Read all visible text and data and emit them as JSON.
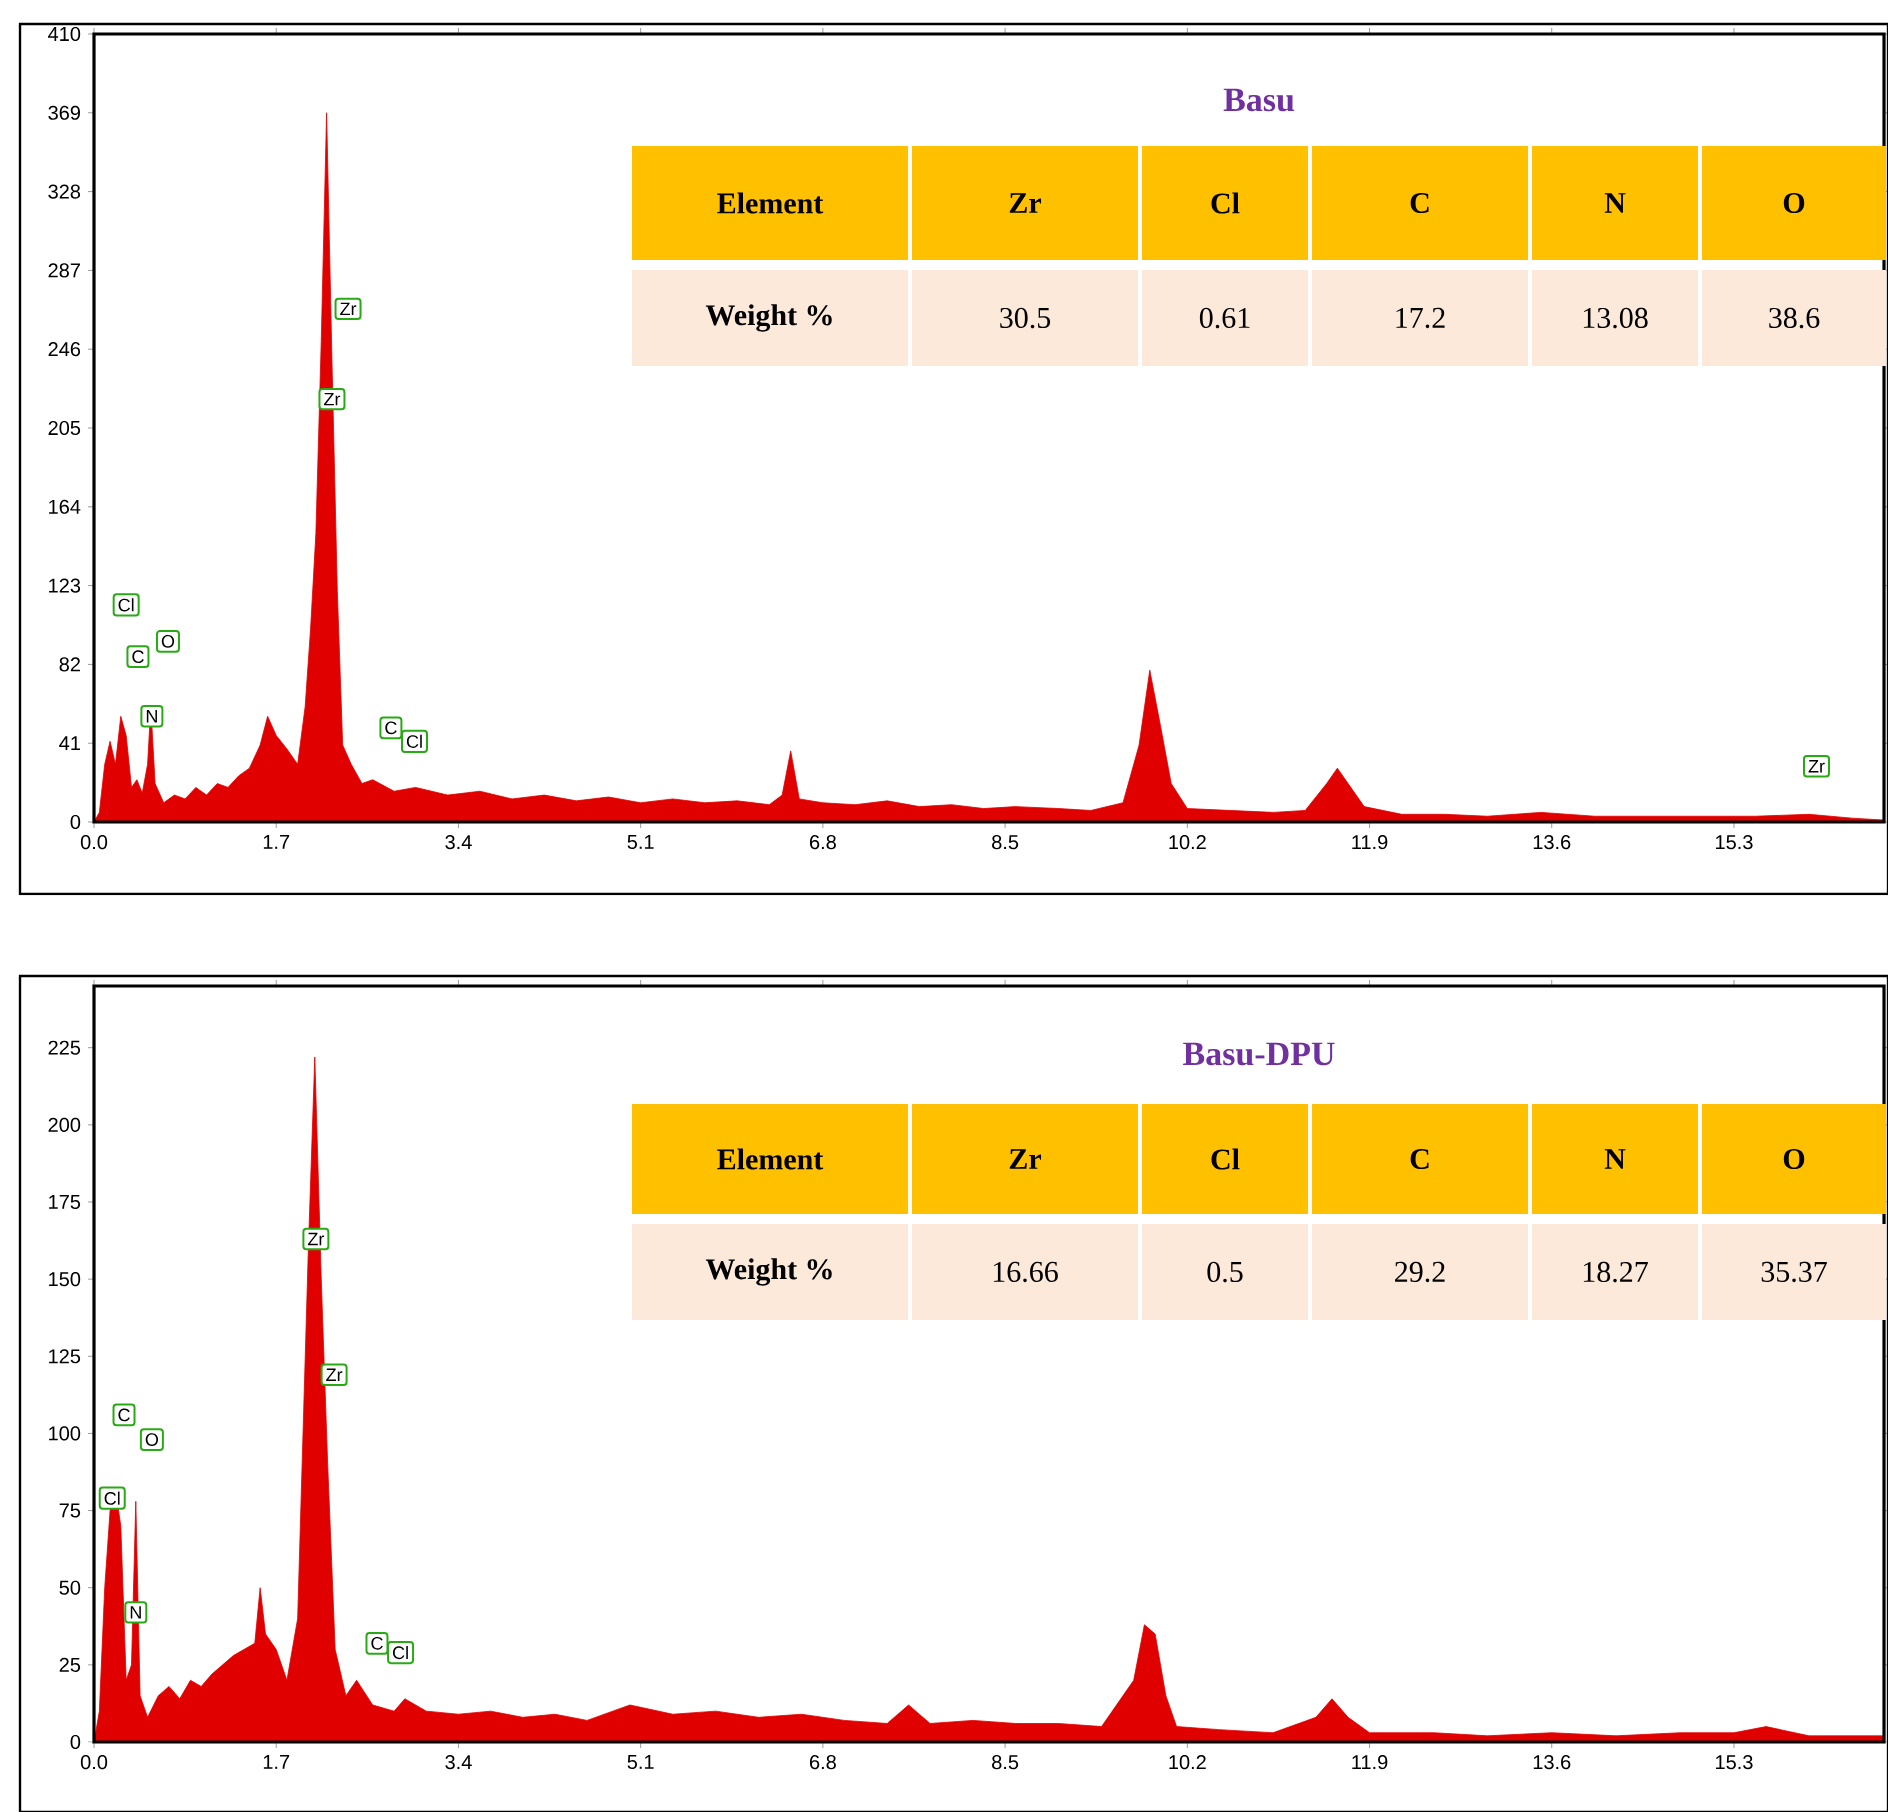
{
  "chart_data": [
    {
      "type": "area",
      "xlim": [
        0,
        16.7
      ],
      "ylim": [
        0,
        410
      ],
      "xticks": [
        {
          "value": 0,
          "label": "0.0"
        },
        1.7,
        3.4,
        5.1,
        6.8,
        8.5,
        10.2,
        11.9,
        13.6,
        15.3
      ],
      "yticks": [
        0,
        41,
        82,
        123,
        164,
        205,
        246,
        287,
        328,
        369,
        410
      ],
      "grid": false,
      "marker": "none",
      "series": [
        {
          "color": "#e00000",
          "x": [
            0.0,
            0.05,
            0.1,
            0.15,
            0.2,
            0.25,
            0.3,
            0.35,
            0.4,
            0.45,
            0.5,
            0.53,
            0.57,
            0.65,
            0.75,
            0.85,
            0.95,
            1.05,
            1.15,
            1.25,
            1.35,
            1.45,
            1.55,
            1.62,
            1.7,
            1.8,
            1.9,
            1.97,
            2.02,
            2.07,
            2.12,
            2.17,
            2.22,
            2.27,
            2.32,
            2.4,
            2.5,
            2.6,
            2.8,
            3.0,
            3.3,
            3.6,
            3.9,
            4.2,
            4.5,
            4.8,
            5.1,
            5.4,
            5.7,
            6.0,
            6.3,
            6.42,
            6.5,
            6.58,
            6.8,
            7.1,
            7.4,
            7.7,
            8.0,
            8.3,
            8.6,
            9.0,
            9.3,
            9.6,
            9.75,
            9.85,
            9.95,
            10.05,
            10.2,
            10.6,
            11.0,
            11.3,
            11.5,
            11.6,
            11.7,
            11.85,
            12.2,
            12.6,
            13.0,
            13.5,
            14.0,
            14.5,
            15.0,
            15.5,
            16.0,
            16.4,
            16.7
          ],
          "values": [
            0,
            5,
            30,
            42,
            30,
            55,
            45,
            18,
            22,
            15,
            30,
            60,
            20,
            10,
            14,
            12,
            18,
            14,
            20,
            18,
            24,
            28,
            40,
            55,
            45,
            38,
            30,
            60,
            100,
            150,
            250,
            369,
            240,
            120,
            40,
            30,
            20,
            22,
            16,
            18,
            14,
            16,
            12,
            14,
            11,
            13,
            10,
            12,
            10,
            11,
            9,
            14,
            37,
            12,
            10,
            9,
            11,
            8,
            9,
            7,
            8,
            7,
            6,
            10,
            40,
            79,
            50,
            20,
            7,
            6,
            5,
            6,
            20,
            28,
            20,
            8,
            4,
            4,
            3,
            5,
            3,
            3,
            3,
            3,
            4,
            2,
            1
          ]
        }
      ],
      "annotations": [
        {
          "text": "Cl",
          "x": 0.3,
          "y": 113
        },
        {
          "text": "C",
          "x": 0.41,
          "y": 86
        },
        {
          "text": "O",
          "x": 0.69,
          "y": 94
        },
        {
          "text": "N",
          "x": 0.54,
          "y": 55
        },
        {
          "text": "Zr",
          "x": 2.37,
          "y": 267
        },
        {
          "text": "Zr",
          "x": 2.22,
          "y": 220
        },
        {
          "text": "C",
          "x": 2.77,
          "y": 49
        },
        {
          "text": "Cl",
          "x": 2.99,
          "y": 42
        },
        {
          "text": "Zr",
          "x": 16.07,
          "y": 29
        }
      ]
    },
    {
      "type": "other",
      "title": "Basu",
      "xlabel": "Element",
      "ylabel": "Weight %",
      "categories": [
        "Zr",
        "Cl",
        "C",
        "N",
        "O"
      ],
      "values": [
        30.5,
        0.61,
        17.2,
        13.08,
        38.6
      ],
      "data_labels": true
    },
    {
      "type": "area",
      "xlim": [
        0,
        16.7
      ],
      "ylim": [
        0,
        245
      ],
      "xticks": [
        {
          "value": 0,
          "label": "0.0"
        },
        1.7,
        3.4,
        5.1,
        6.8,
        8.5,
        10.2,
        11.9,
        13.6,
        15.3
      ],
      "yticks": [
        0,
        25,
        50,
        75,
        100,
        125,
        150,
        175,
        200,
        225
      ],
      "grid": false,
      "marker": "none",
      "series": [
        {
          "color": "#e00000",
          "x": [
            0.0,
            0.05,
            0.1,
            0.15,
            0.2,
            0.25,
            0.3,
            0.35,
            0.39,
            0.43,
            0.5,
            0.6,
            0.7,
            0.8,
            0.9,
            1.0,
            1.1,
            1.2,
            1.3,
            1.4,
            1.5,
            1.55,
            1.6,
            1.7,
            1.8,
            1.9,
            1.95,
            2.0,
            2.06,
            2.12,
            2.18,
            2.25,
            2.35,
            2.45,
            2.6,
            2.8,
            2.9,
            3.1,
            3.4,
            3.7,
            4.0,
            4.3,
            4.6,
            5.0,
            5.4,
            5.8,
            6.2,
            6.6,
            7.0,
            7.4,
            7.6,
            7.8,
            8.2,
            8.6,
            9.0,
            9.4,
            9.7,
            9.8,
            9.9,
            10.0,
            10.1,
            10.5,
            11.0,
            11.4,
            11.55,
            11.7,
            11.9,
            12.5,
            13.0,
            13.6,
            14.2,
            14.8,
            15.3,
            15.6,
            16.0,
            16.7
          ],
          "values": [
            0,
            10,
            50,
            75,
            82,
            70,
            20,
            25,
            78,
            15,
            8,
            15,
            18,
            14,
            20,
            18,
            22,
            25,
            28,
            30,
            32,
            50,
            35,
            30,
            20,
            40,
            100,
            160,
            222,
            150,
            90,
            30,
            15,
            20,
            12,
            10,
            14,
            10,
            9,
            10,
            8,
            9,
            7,
            12,
            9,
            10,
            8,
            9,
            7,
            6,
            12,
            6,
            7,
            6,
            6,
            5,
            20,
            38,
            35,
            15,
            5,
            4,
            3,
            8,
            14,
            8,
            3,
            3,
            2,
            3,
            2,
            3,
            3,
            5,
            2,
            2
          ]
        }
      ],
      "annotations": [
        {
          "text": "Zr",
          "x": 2.07,
          "y": 163
        },
        {
          "text": "Zr",
          "x": 2.24,
          "y": 119
        },
        {
          "text": "C",
          "x": 0.28,
          "y": 106
        },
        {
          "text": "O",
          "x": 0.54,
          "y": 98
        },
        {
          "text": "Cl",
          "x": 0.17,
          "y": 79
        },
        {
          "text": "N",
          "x": 0.39,
          "y": 42
        },
        {
          "text": "C",
          "x": 2.64,
          "y": 32
        },
        {
          "text": "Cl",
          "x": 2.86,
          "y": 29
        }
      ]
    },
    {
      "type": "other",
      "title": "Basu-DPU",
      "xlabel": "Element",
      "ylabel": "Weight %",
      "categories": [
        "Zr",
        "Cl",
        "C",
        "N",
        "O"
      ],
      "values": [
        16.66,
        0.5,
        29.2,
        18.27,
        35.37
      ],
      "data_labels": true
    }
  ]
}
